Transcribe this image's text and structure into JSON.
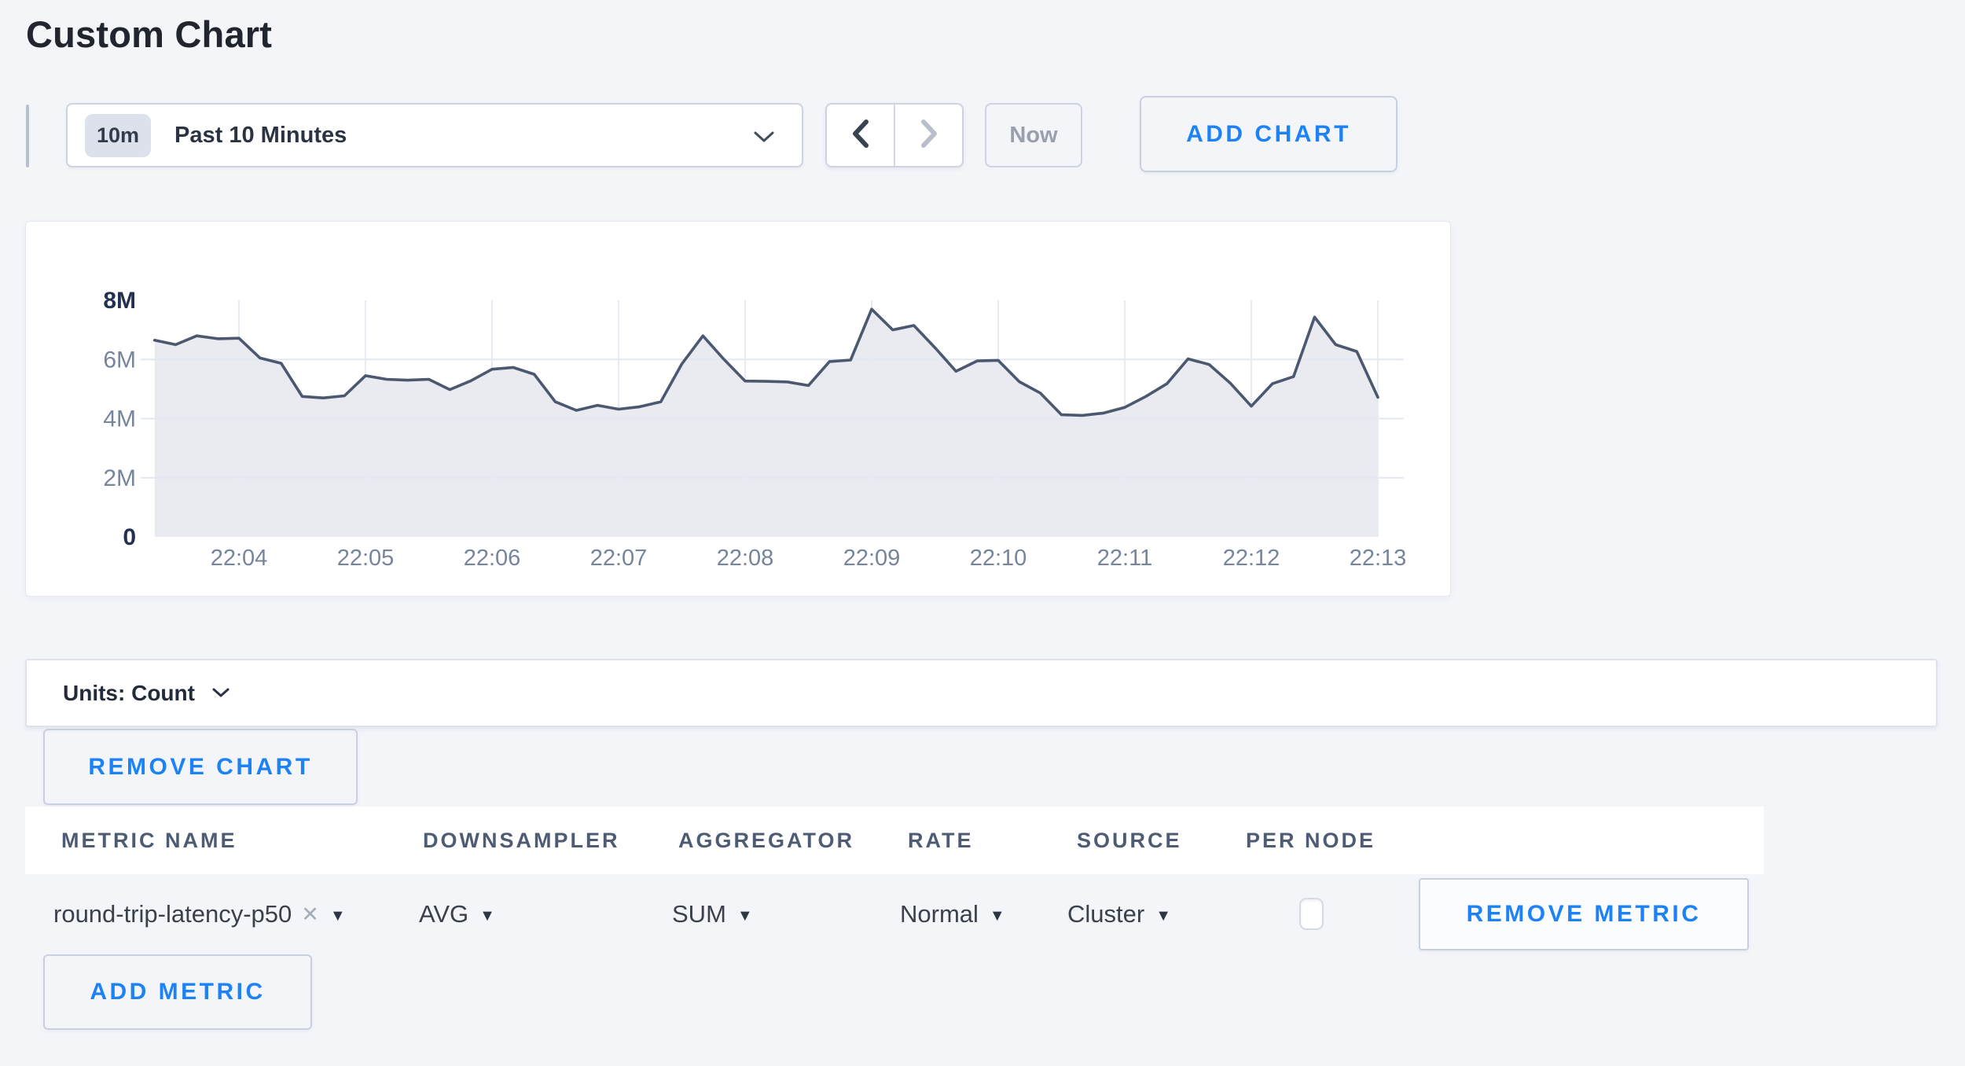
{
  "page": {
    "title": "Custom Chart",
    "background_color": "#f3f5f9",
    "accent_blue": "#1d82f5"
  },
  "toolbar": {
    "time_range": {
      "badge": "10m",
      "label": "Past 10 Minutes"
    },
    "now_label": "Now",
    "add_chart_label": "ADD CHART"
  },
  "icons": {
    "time-range-chevron": "chevron-down",
    "prev-interval": "chevron-left",
    "next-interval": "chevron-right (disabled)",
    "units-chevron": "chevron-down",
    "metric-remove-x": "✕",
    "dropdown-caret": "▼"
  },
  "chart_data": {
    "type": "area",
    "title": "",
    "xlabel": "",
    "ylabel": "",
    "x": [
      "22:03:20",
      "22:03:30",
      "22:03:40",
      "22:03:50",
      "22:04:00",
      "22:04:10",
      "22:04:20",
      "22:04:30",
      "22:04:40",
      "22:04:50",
      "22:05:00",
      "22:05:10",
      "22:05:20",
      "22:05:30",
      "22:05:40",
      "22:05:50",
      "22:06:00",
      "22:06:10",
      "22:06:20",
      "22:06:30",
      "22:06:40",
      "22:06:50",
      "22:07:00",
      "22:07:10",
      "22:07:20",
      "22:07:30",
      "22:07:40",
      "22:07:50",
      "22:08:00",
      "22:08:10",
      "22:08:20",
      "22:08:30",
      "22:08:40",
      "22:08:50",
      "22:09:00",
      "22:09:10",
      "22:09:20",
      "22:09:30",
      "22:09:40",
      "22:09:50",
      "22:10:00",
      "22:10:10",
      "22:10:20",
      "22:10:30",
      "22:10:40",
      "22:10:50",
      "22:11:00",
      "22:11:10",
      "22:11:20",
      "22:11:30",
      "22:11:40",
      "22:11:50",
      "22:12:00",
      "22:12:10",
      "22:12:20",
      "22:12:30",
      "22:12:40",
      "22:12:50",
      "22:13:00"
    ],
    "values_millions": [
      6.65,
      6.5,
      6.8,
      6.7,
      6.72,
      6.05,
      5.87,
      4.75,
      4.7,
      4.77,
      5.45,
      5.33,
      5.3,
      5.33,
      4.98,
      5.28,
      5.67,
      5.73,
      5.5,
      4.57,
      4.28,
      4.45,
      4.32,
      4.4,
      4.57,
      5.85,
      6.8,
      6.0,
      5.27,
      5.26,
      5.24,
      5.12,
      5.93,
      5.98,
      7.7,
      7.0,
      7.15,
      6.4,
      5.6,
      5.95,
      5.97,
      5.25,
      4.86,
      4.13,
      4.11,
      4.19,
      4.38,
      4.75,
      5.18,
      6.02,
      5.83,
      5.2,
      4.42,
      5.18,
      5.42,
      7.43,
      6.5,
      6.27,
      4.72
    ],
    "x_tick_labels": [
      "22:04",
      "22:05",
      "22:06",
      "22:07",
      "22:08",
      "22:09",
      "22:10",
      "22:11",
      "22:12",
      "22:13"
    ],
    "y_tick_labels": [
      "0",
      "2M",
      "4M",
      "6M",
      "8M"
    ],
    "y_tick_values_millions": [
      0,
      2,
      4,
      6,
      8
    ],
    "ylim_millions": [
      0,
      8
    ],
    "grid": true,
    "legend": "none",
    "line_color": "#4b586f",
    "fill_color": "#e9ebf1",
    "h_grid_color": "#e2e8f1",
    "v_grid_color": "#e7ecf4",
    "axis_label_color": "#76849c",
    "axis_label_bold_color": "#233050"
  },
  "units_bar": {
    "label": "Units: Count"
  },
  "buttons": {
    "remove_chart": "REMOVE CHART",
    "remove_metric": "REMOVE METRIC",
    "add_metric": "ADD METRIC"
  },
  "metrics_table": {
    "columns": [
      "METRIC NAME",
      "DOWNSAMPLER",
      "AGGREGATOR",
      "RATE",
      "SOURCE",
      "PER NODE"
    ],
    "rows": [
      {
        "metric_name": "round-trip-latency-p50",
        "downsampler": "AVG",
        "aggregator": "SUM",
        "rate": "Normal",
        "source": "Cluster",
        "per_node_checked": false
      }
    ]
  }
}
